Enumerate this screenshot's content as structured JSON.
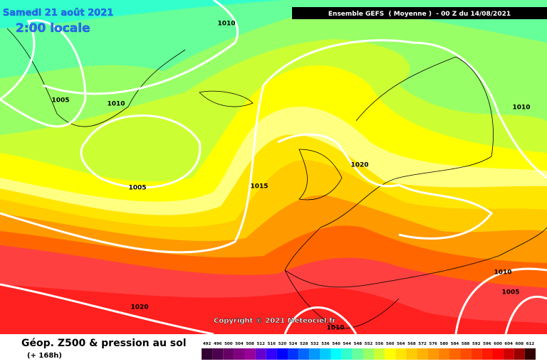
{
  "header": {
    "date": "Samedi 21 août 2021",
    "time": "2:00 locale",
    "title": "Ensemble GEFS  ( Moyenne )  - 00 Z du 14/08/2021"
  },
  "map": {
    "isobar_labels": [
      "1010",
      "1005",
      "1010",
      "1005",
      "1015",
      "1020",
      "1010",
      "1010",
      "1005",
      "1020",
      "1010"
    ],
    "copyright": "Copyright © 2021 Meteociel.fr"
  },
  "footer": {
    "caption": "Géop. Z500 & pression au sol",
    "forecast": "(+ 168h)"
  },
  "legend": {
    "labels": [
      492,
      496,
      500,
      504,
      508,
      512,
      516,
      520,
      524,
      528,
      532,
      536,
      540,
      544,
      548,
      552,
      556,
      560,
      564,
      568,
      572,
      576,
      580,
      584,
      588,
      592,
      596,
      600,
      604,
      608,
      612
    ],
    "colors": [
      "#330033",
      "#4d004d",
      "#660066",
      "#800080",
      "#990099",
      "#6600cc",
      "#3300ff",
      "#0000ff",
      "#0033ff",
      "#0066ff",
      "#0099ff",
      "#00ccff",
      "#00ffff",
      "#33ffcc",
      "#66ff99",
      "#99ff66",
      "#ccff33",
      "#ffff00",
      "#ffe600",
      "#ffcc00",
      "#ffb300",
      "#ff9900",
      "#ff8000",
      "#ff6600",
      "#ff4d00",
      "#ff3300",
      "#ff1a00",
      "#ff0000",
      "#cc0000",
      "#990000",
      "#330000"
    ]
  }
}
